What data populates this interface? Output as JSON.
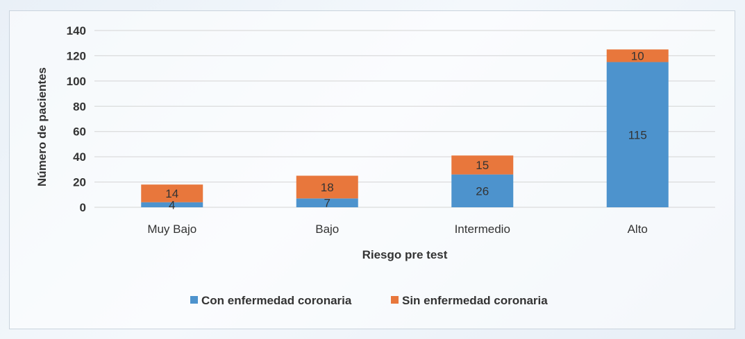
{
  "chart_data": {
    "type": "bar",
    "stacked": true,
    "title": "",
    "xlabel": "Riesgo pre test",
    "ylabel": "Número de pacientes",
    "ylim": [
      0,
      140
    ],
    "yticks": [
      0,
      20,
      40,
      60,
      80,
      100,
      120,
      140
    ],
    "categories": [
      "Muy Bajo",
      "Bajo",
      "Intermedio",
      "Alto"
    ],
    "series": [
      {
        "name": "Con enfermedad coronaria",
        "color": "#4d93cd",
        "values": [
          4,
          7,
          26,
          115
        ]
      },
      {
        "name": "Sin enfermedad coronaria",
        "color": "#e8773c",
        "values": [
          14,
          18,
          15,
          10
        ]
      }
    ],
    "legend_position": "bottom",
    "grid": true
  }
}
